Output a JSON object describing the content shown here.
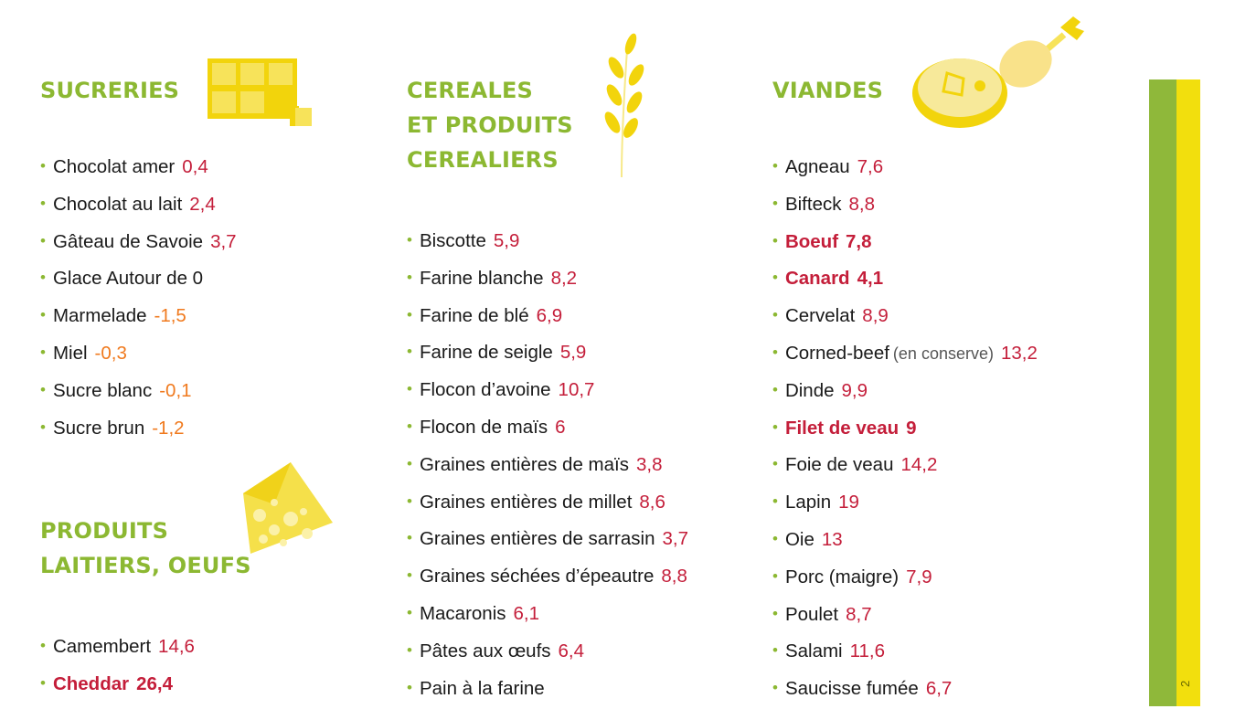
{
  "sucreries": {
    "title_lines": [
      "SUCRERIES"
    ],
    "items": [
      {
        "name": "Chocolat amer",
        "value": "0,4",
        "tone": "red"
      },
      {
        "name": "Chocolat au lait",
        "value": "2,4",
        "tone": "red"
      },
      {
        "name": "Gâteau de Savoie",
        "value": "3,7",
        "tone": "red"
      },
      {
        "name": "Glace Autour de 0",
        "value": "",
        "tone": "red"
      },
      {
        "name": "Marmelade",
        "value": "-1,5",
        "tone": "orange"
      },
      {
        "name": "Miel",
        "value": "-0,3",
        "tone": "orange"
      },
      {
        "name": "Sucre blanc",
        "value": "-0,1",
        "tone": "orange"
      },
      {
        "name": "Sucre brun",
        "value": "-1,2",
        "tone": "orange"
      }
    ]
  },
  "laitiers": {
    "title_lines": [
      "PRODUITS",
      "LAITIERS, OEUFS"
    ],
    "items": [
      {
        "name": "Camembert",
        "value": "14,6",
        "tone": "red"
      },
      {
        "name": "Cheddar",
        "value": "26,4",
        "tone": "red",
        "bold": true
      }
    ]
  },
  "cereales": {
    "title_lines": [
      "CEREALES",
      "ET PRODUITS",
      "CEREALIERS"
    ],
    "items": [
      {
        "name": "Biscotte",
        "value": "5,9",
        "tone": "red"
      },
      {
        "name": "Farine blanche",
        "value": "8,2",
        "tone": "red"
      },
      {
        "name": "Farine de blé",
        "value": "6,9",
        "tone": "red"
      },
      {
        "name": "Farine de seigle",
        "value": "5,9",
        "tone": "red"
      },
      {
        "name": "Flocon d’avoine",
        "value": "10,7",
        "tone": "red"
      },
      {
        "name": "Flocon de maïs",
        "value": "6",
        "tone": "red"
      },
      {
        "name": "Graines entières de maïs",
        "value": "3,8",
        "tone": "red"
      },
      {
        "name": "Graines entières de millet",
        "value": "8,6",
        "tone": "red"
      },
      {
        "name": "Graines entières de sarrasin",
        "value": "3,7",
        "tone": "red"
      },
      {
        "name": "Graines séchées d’épeautre",
        "value": "8,8",
        "tone": "red"
      },
      {
        "name": "Macaronis",
        "value": "6,1",
        "tone": "red"
      },
      {
        "name": "Pâtes aux œufs",
        "value": "6,4",
        "tone": "red"
      },
      {
        "name": "Pain à la farine",
        "value": "",
        "tone": "red"
      }
    ]
  },
  "viandes": {
    "title_lines": [
      "VIANDES"
    ],
    "items": [
      {
        "name": "Agneau",
        "value": "7,6",
        "tone": "red"
      },
      {
        "name": "Bifteck",
        "value": "8,8",
        "tone": "red"
      },
      {
        "name": "Boeuf",
        "value": "7,8",
        "tone": "red",
        "bold": true
      },
      {
        "name": "Canard",
        "value": "4,1",
        "tone": "red",
        "bold": true
      },
      {
        "name": "Cervelat",
        "value": "8,9",
        "tone": "red"
      },
      {
        "name": "Corned-beef",
        "note": "(en conserve)",
        "value": "13,2",
        "tone": "red"
      },
      {
        "name": "Dinde",
        "value": "9,9",
        "tone": "red"
      },
      {
        "name": "Filet de veau",
        "value": "9",
        "tone": "red",
        "bold": true
      },
      {
        "name": "Foie de veau",
        "value": "14,2",
        "tone": "red"
      },
      {
        "name": "Lapin",
        "value": "19",
        "tone": "red"
      },
      {
        "name": "Oie",
        "value": "13",
        "tone": "red"
      },
      {
        "name": "Porc (maigre)",
        "value": "7,9",
        "tone": "red"
      },
      {
        "name": "Poulet",
        "value": "8,7",
        "tone": "red"
      },
      {
        "name": "Salami",
        "value": "11,6",
        "tone": "red"
      },
      {
        "name": "Saucisse fumée",
        "value": "6,7",
        "tone": "red"
      }
    ]
  },
  "page_number": "2",
  "colors": {
    "heading": "#8cb832",
    "value_red": "#c41e3a",
    "value_orange": "#f07a1e",
    "stripe_green": "#8fb83a",
    "stripe_yellow": "#f2df0d"
  },
  "icons": [
    "chocolate-bar-icon",
    "cheese-icon",
    "wheat-icon",
    "meat-icon"
  ]
}
